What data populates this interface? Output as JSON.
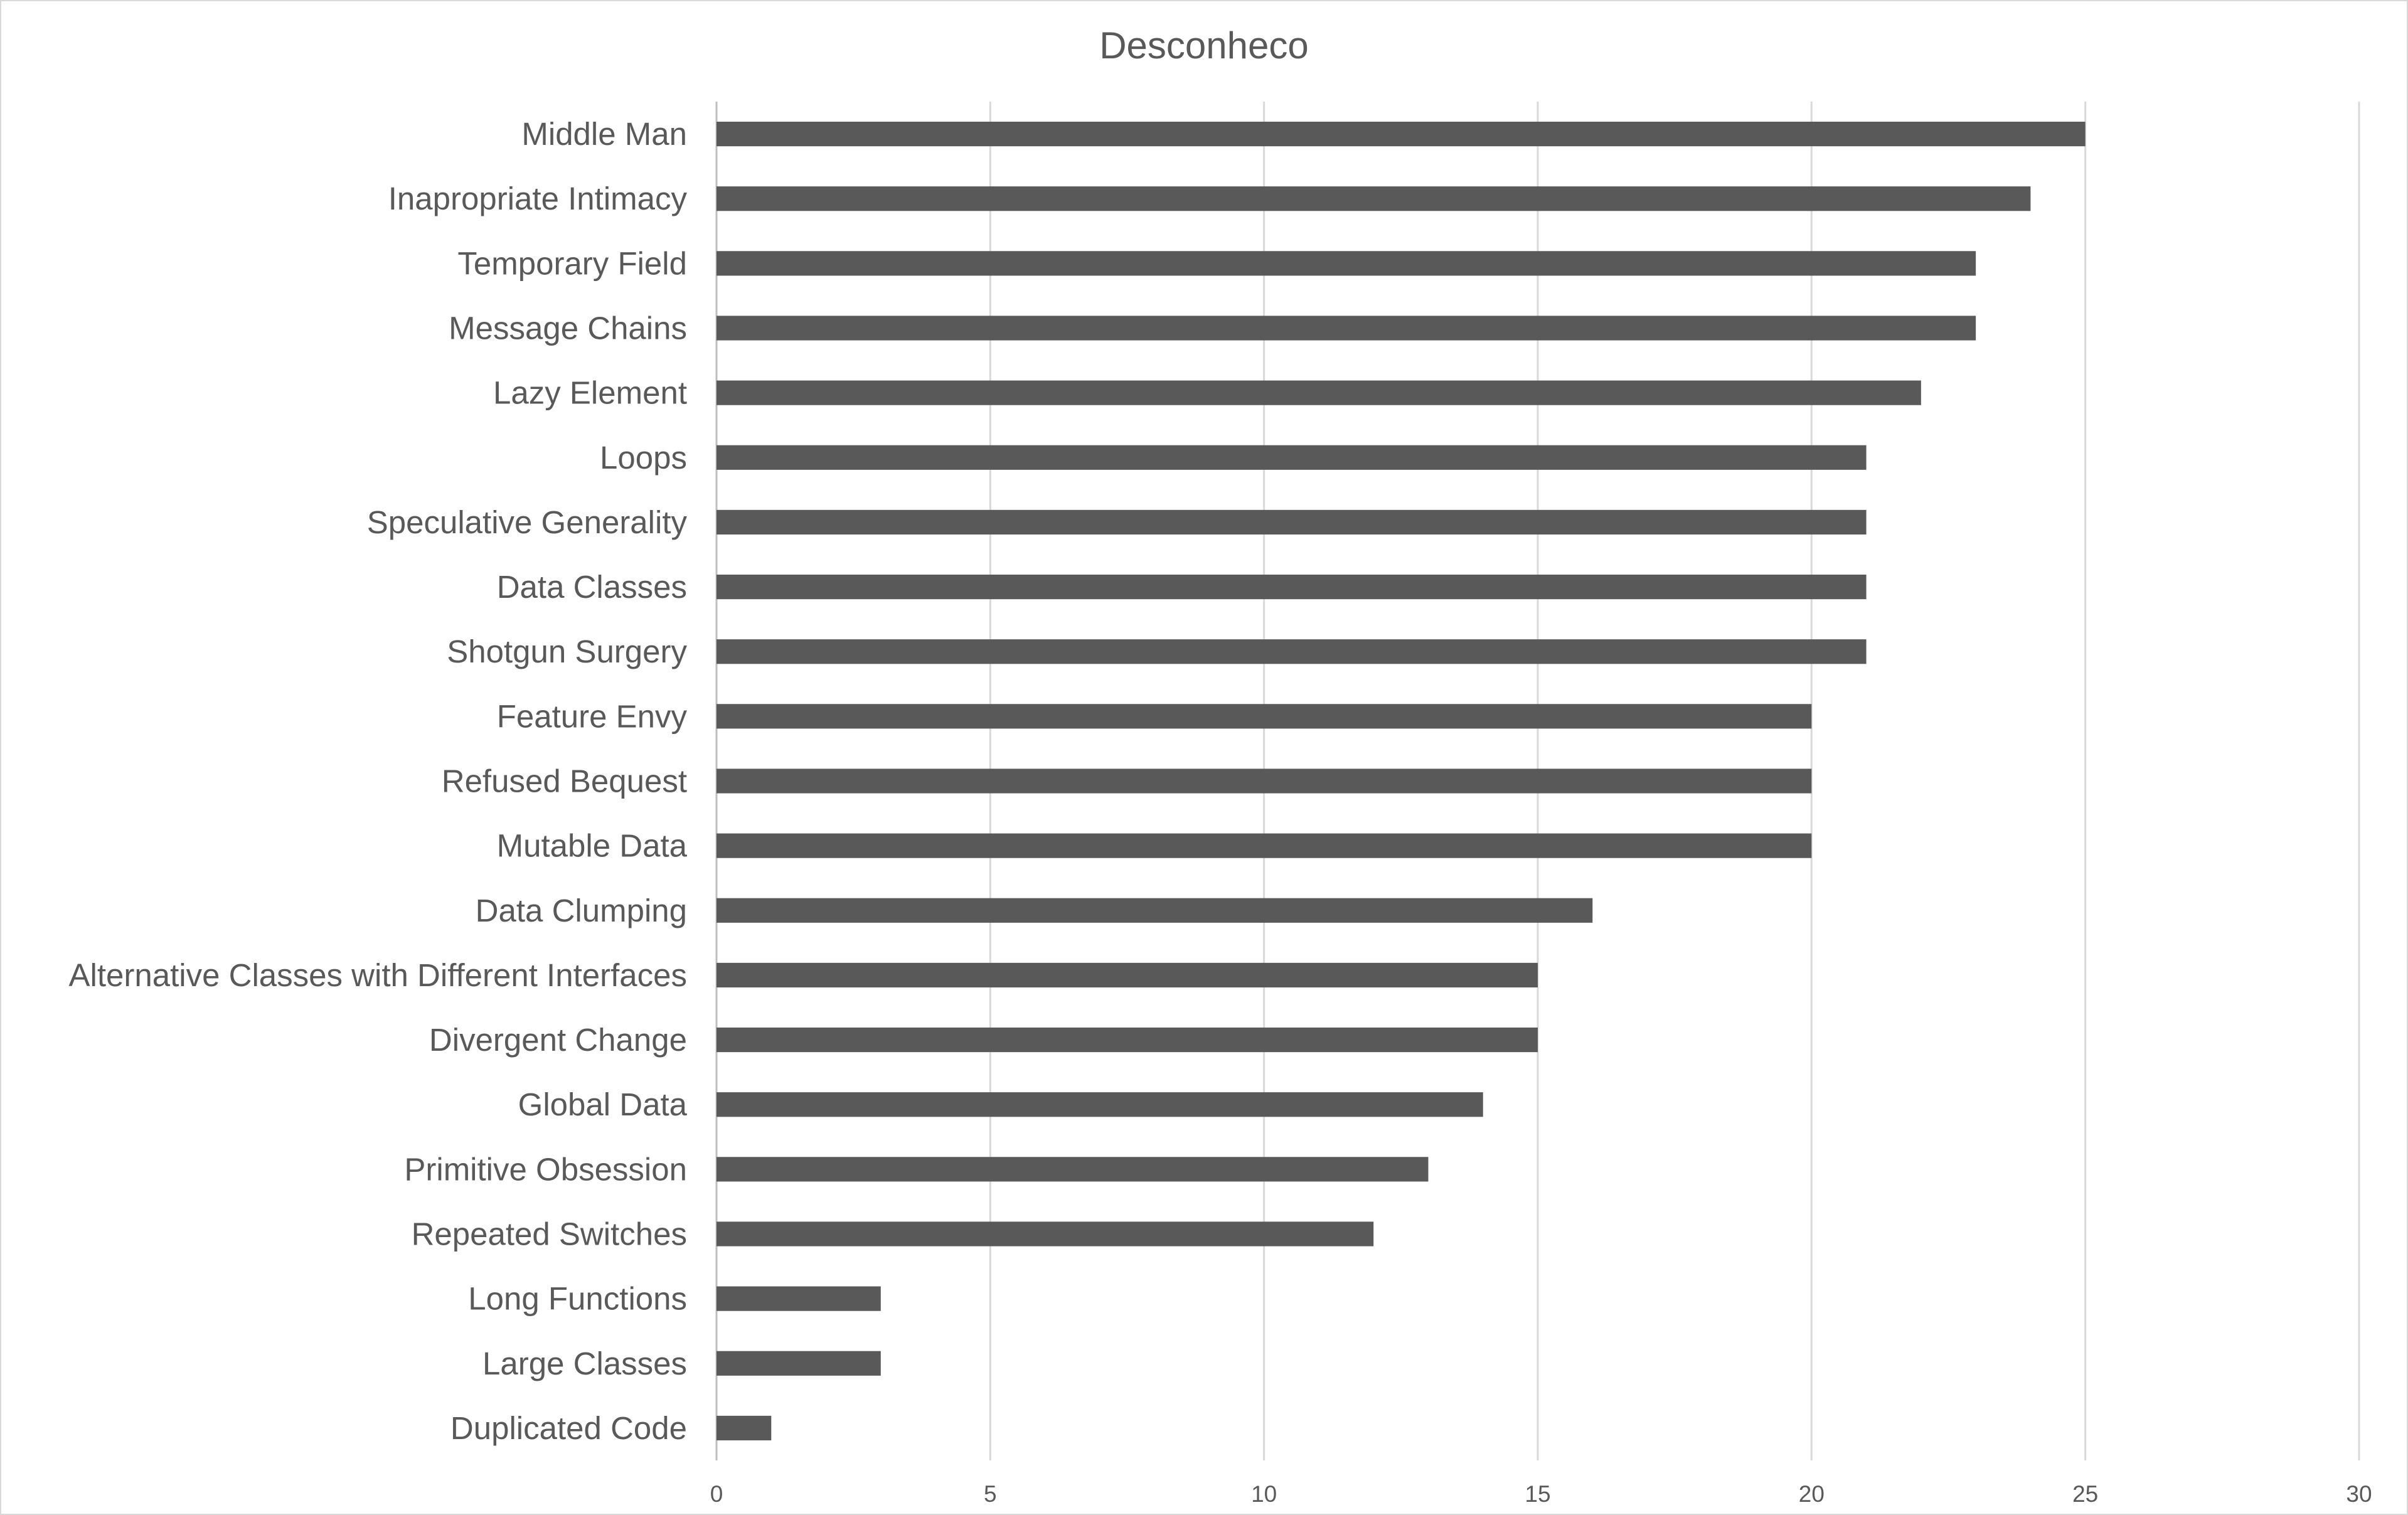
{
  "chart_data": {
    "type": "bar",
    "orientation": "horizontal",
    "title": "Desconheco",
    "xlabel": "",
    "ylabel": "",
    "xlim": [
      0,
      30
    ],
    "ticks": [
      0,
      5,
      10,
      15,
      20,
      25,
      30
    ],
    "grid": true,
    "legend": "none",
    "bar_color": "#595959",
    "categories": [
      "Middle Man",
      "Inapropriate Intimacy",
      "Temporary Field",
      "Message Chains",
      "Lazy Element",
      "Loops",
      "Speculative Generality",
      "Data Classes",
      "Shotgun Surgery",
      "Feature Envy",
      "Refused Bequest",
      "Mutable Data",
      "Data Clumping",
      "Alternative Classes with Different Interfaces",
      "Divergent Change",
      "Global Data",
      "Primitive Obsession",
      "Repeated Switches",
      "Long Functions",
      "Large Classes",
      "Duplicated Code"
    ],
    "values": [
      25,
      24,
      23,
      23,
      22,
      21,
      21,
      21,
      21,
      20,
      20,
      20,
      16,
      15,
      15,
      14,
      13,
      12,
      3,
      3,
      1
    ]
  }
}
